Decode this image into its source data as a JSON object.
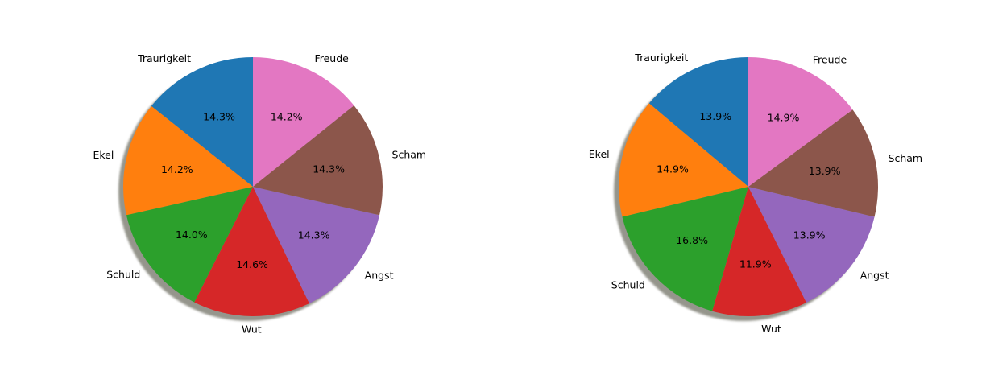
{
  "chart_data": [
    {
      "type": "pie",
      "categories": [
        "Traurigkeit",
        "Ekel",
        "Schuld",
        "Wut",
        "Angst",
        "Scham",
        "Freude"
      ],
      "values": [
        14.3,
        14.2,
        14.0,
        14.6,
        14.3,
        14.3,
        14.2
      ],
      "value_labels": [
        "14.3%",
        "14.2%",
        "14.0%",
        "14.6%",
        "14.3%",
        "14.3%",
        "14.2%"
      ],
      "colors": [
        "#1f77b4",
        "#ff7f0e",
        "#2ca02c",
        "#d62728",
        "#9467bd",
        "#8c564b",
        "#e377c2"
      ],
      "start_angle_deg": 90,
      "direction": "counterclockwise",
      "shadow": true
    },
    {
      "type": "pie",
      "categories": [
        "Traurigkeit",
        "Ekel",
        "Schuld",
        "Wut",
        "Angst",
        "Scham",
        "Freude"
      ],
      "values": [
        13.9,
        14.9,
        16.8,
        11.9,
        13.9,
        13.9,
        14.9
      ],
      "value_labels": [
        "13.9%",
        "14.9%",
        "16.8%",
        "11.9%",
        "13.9%",
        "13.9%",
        "14.9%"
      ],
      "colors": [
        "#1f77b4",
        "#ff7f0e",
        "#2ca02c",
        "#d62728",
        "#9467bd",
        "#8c564b",
        "#e377c2"
      ],
      "start_angle_deg": 90,
      "direction": "counterclockwise",
      "shadow": true
    }
  ]
}
